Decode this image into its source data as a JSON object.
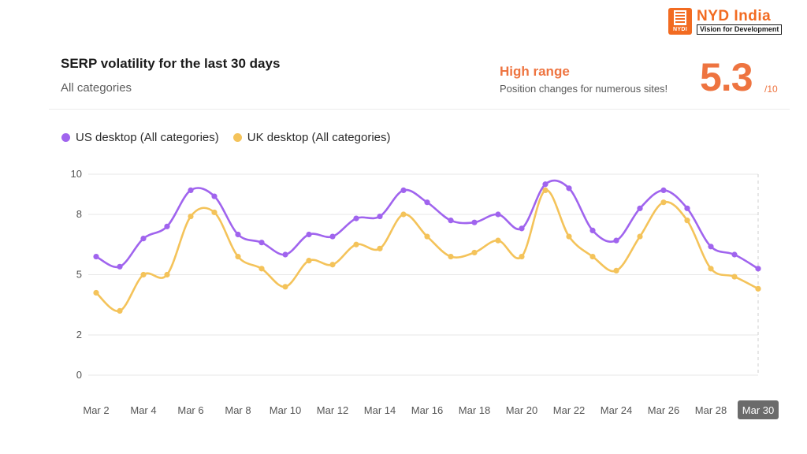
{
  "logo": {
    "badge": "NYDI",
    "name": "NYD India",
    "tagline": "Vision for Development"
  },
  "header": {
    "title": "SERP volatility for the last 30 days",
    "subtitle": "All categories"
  },
  "score_panel": {
    "range_label": "High range",
    "range_description": "Position changes for numerous sites!",
    "score": "5.3",
    "score_max": "/10"
  },
  "colors": {
    "us": "#a064ee",
    "uk": "#f4c35a",
    "accent": "#ee7440",
    "grid": "#e7e7e7",
    "highlight_tick_bg": "#6b6b6b"
  },
  "chart_data": {
    "type": "line",
    "title": "SERP volatility for the last 30 days",
    "subtitle": "All categories",
    "y_ticks": [
      0,
      2,
      5,
      8,
      10
    ],
    "ylim": [
      0,
      10
    ],
    "x_tick_labels": [
      "Mar 2",
      "Mar 4",
      "Mar 6",
      "Mar 8",
      "Mar 10",
      "Mar 12",
      "Mar 14",
      "Mar 16",
      "Mar 18",
      "Mar 20",
      "Mar 22",
      "Mar 24",
      "Mar 26",
      "Mar 28",
      "Mar 30"
    ],
    "highlighted_x_tick": "Mar 30",
    "x": [
      "Mar 2",
      "Mar 3",
      "Mar 4",
      "Mar 5",
      "Mar 6",
      "Mar 7",
      "Mar 8",
      "Mar 9",
      "Mar 10",
      "Mar 11",
      "Mar 12",
      "Mar 13",
      "Mar 14",
      "Mar 15",
      "Mar 16",
      "Mar 17",
      "Mar 18",
      "Mar 19",
      "Mar 20",
      "Mar 21",
      "Mar 22",
      "Mar 23",
      "Mar 24",
      "Mar 25",
      "Mar 26",
      "Mar 27",
      "Mar 28",
      "Mar 29",
      "Mar 30"
    ],
    "legend_position": "top-left",
    "grid": true,
    "series": [
      {
        "name": "US desktop (All categories)",
        "color": "#a064ee",
        "values": [
          5.9,
          5.4,
          6.8,
          7.4,
          9.2,
          8.9,
          7.0,
          6.6,
          6.0,
          7.0,
          6.9,
          7.8,
          7.9,
          9.2,
          8.6,
          7.7,
          7.6,
          8.0,
          7.3,
          9.5,
          9.3,
          7.2,
          6.7,
          8.3,
          9.2,
          8.3,
          6.4,
          6.0,
          5.3
        ]
      },
      {
        "name": "UK desktop (All categories)",
        "color": "#f4c35a",
        "values": [
          4.1,
          3.2,
          5.0,
          5.0,
          7.9,
          8.1,
          5.9,
          5.3,
          4.4,
          5.7,
          5.5,
          6.5,
          6.3,
          8.0,
          6.9,
          5.9,
          6.1,
          6.7,
          5.9,
          9.2,
          6.9,
          5.9,
          5.2,
          6.9,
          8.6,
          7.7,
          5.3,
          4.9,
          4.3
        ]
      }
    ]
  }
}
